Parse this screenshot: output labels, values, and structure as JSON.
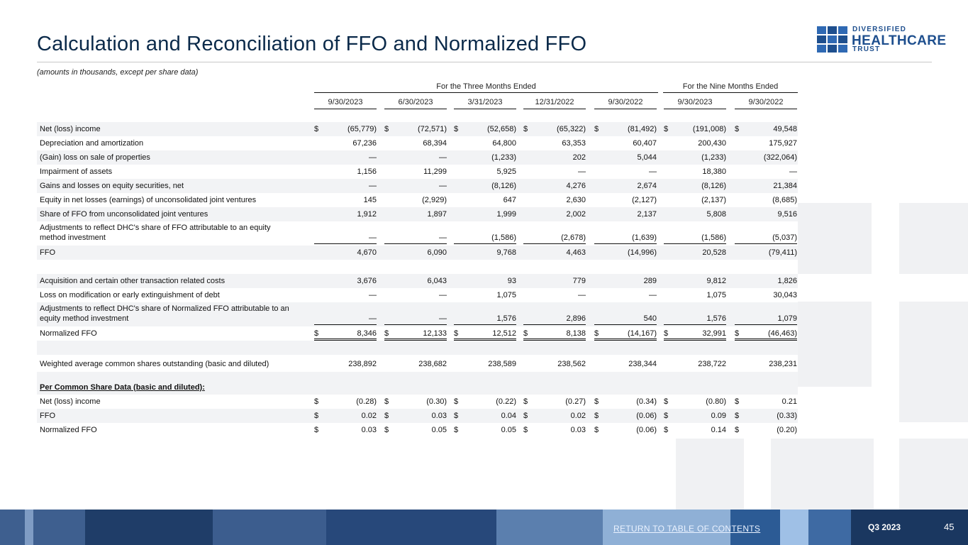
{
  "title": "Calculation and Reconciliation of FFO and Normalized FFO",
  "subtitle": "(amounts in thousands, except per share data)",
  "logo": {
    "line1": "DIVERSIFIED",
    "line2": "HEALTHCARE",
    "line3": "TRUST"
  },
  "groups": [
    "For the Three Months Ended",
    "For the Nine Months Ended"
  ],
  "columns": [
    "9/30/2023",
    "6/30/2023",
    "3/31/2023",
    "12/31/2022",
    "9/30/2022",
    "9/30/2023",
    "9/30/2022"
  ],
  "rows": [
    {
      "label": "Net (loss) income",
      "dollar": true,
      "values": [
        "(65,779)",
        "(72,571)",
        "(52,658)",
        "(65,322)",
        "(81,492)",
        "(191,008)",
        "49,548"
      ]
    },
    {
      "label": "Depreciation and amortization",
      "values": [
        "67,236",
        "68,394",
        "64,800",
        "63,353",
        "60,407",
        "200,430",
        "175,927"
      ]
    },
    {
      "label": "(Gain) loss on sale of properties",
      "values": [
        "—",
        "—",
        "(1,233)",
        "202",
        "5,044",
        "(1,233)",
        "(322,064)"
      ]
    },
    {
      "label": "Impairment of assets",
      "values": [
        "1,156",
        "11,299",
        "5,925",
        "—",
        "—",
        "18,380",
        "—"
      ]
    },
    {
      "label": "Gains and losses on equity securities, net",
      "values": [
        "—",
        "—",
        "(8,126)",
        "4,276",
        "2,674",
        "(8,126)",
        "21,384"
      ]
    },
    {
      "label": "Equity in net losses (earnings) of unconsolidated joint ventures",
      "values": [
        "145",
        "(2,929)",
        "647",
        "2,630",
        "(2,127)",
        "(2,137)",
        "(8,685)"
      ]
    },
    {
      "label": "Share of FFO from unconsolidated joint ventures",
      "values": [
        "1,912",
        "1,897",
        "1,999",
        "2,002",
        "2,137",
        "5,808",
        "9,516"
      ]
    },
    {
      "label": "Adjustments to reflect DHC's share of FFO attributable to an equity",
      "label2": "method investment",
      "underline": true,
      "values": [
        "—",
        "—",
        "(1,586)",
        "(2,678)",
        "(1,639)",
        "(1,586)",
        "(5,037)"
      ]
    },
    {
      "label": "FFO",
      "values": [
        "4,670",
        "6,090",
        "9,768",
        "4,463",
        "(14,996)",
        "20,528",
        "(79,411)"
      ]
    },
    {
      "spacer": true
    },
    {
      "label": "Acquisition and certain other transaction related costs",
      "values": [
        "3,676",
        "6,043",
        "93",
        "779",
        "289",
        "9,812",
        "1,826"
      ]
    },
    {
      "label": "Loss on modification or early extinguishment of debt",
      "values": [
        "—",
        "—",
        "1,075",
        "—",
        "—",
        "1,075",
        "30,043"
      ]
    },
    {
      "label": "Adjustments to reflect DHC's share of Normalized FFO attributable to an",
      "label2": "equity method investment",
      "underline": true,
      "values": [
        "—",
        "—",
        "1,576",
        "2,896",
        "540",
        "1,576",
        "1,079"
      ]
    },
    {
      "label": "Normalized FFO",
      "dollar": true,
      "double": true,
      "values": [
        "8,346",
        "12,133",
        "12,512",
        "8,138",
        "(14,167)",
        "32,991",
        "(46,463)"
      ]
    },
    {
      "spacer": true
    },
    {
      "label": "Weighted average common shares outstanding (basic and diluted)",
      "values": [
        "238,892",
        "238,682",
        "238,589",
        "238,562",
        "238,344",
        "238,722",
        "238,231"
      ]
    },
    {
      "spacer": true
    },
    {
      "label": "Per Common Share Data (basic and diluted):",
      "section": true,
      "values": []
    },
    {
      "label": "Net (loss) income",
      "dollar": true,
      "values": [
        "(0.28)",
        "(0.30)",
        "(0.22)",
        "(0.27)",
        "(0.34)",
        "(0.80)",
        "0.21"
      ]
    },
    {
      "label": "FFO",
      "dollar": true,
      "values": [
        "0.02",
        "0.03",
        "0.04",
        "0.02",
        "(0.06)",
        "0.09",
        "(0.33)"
      ]
    },
    {
      "label": "Normalized FFO",
      "dollar": true,
      "values": [
        "0.03",
        "0.05",
        "0.05",
        "0.03",
        "(0.06)",
        "0.14",
        "(0.20)"
      ]
    }
  ],
  "currency_symbol": "$",
  "footer": {
    "return_link": "RETURN TO TABLE OF CONTENTS",
    "quarter": "Q3 2023",
    "page": "45"
  }
}
